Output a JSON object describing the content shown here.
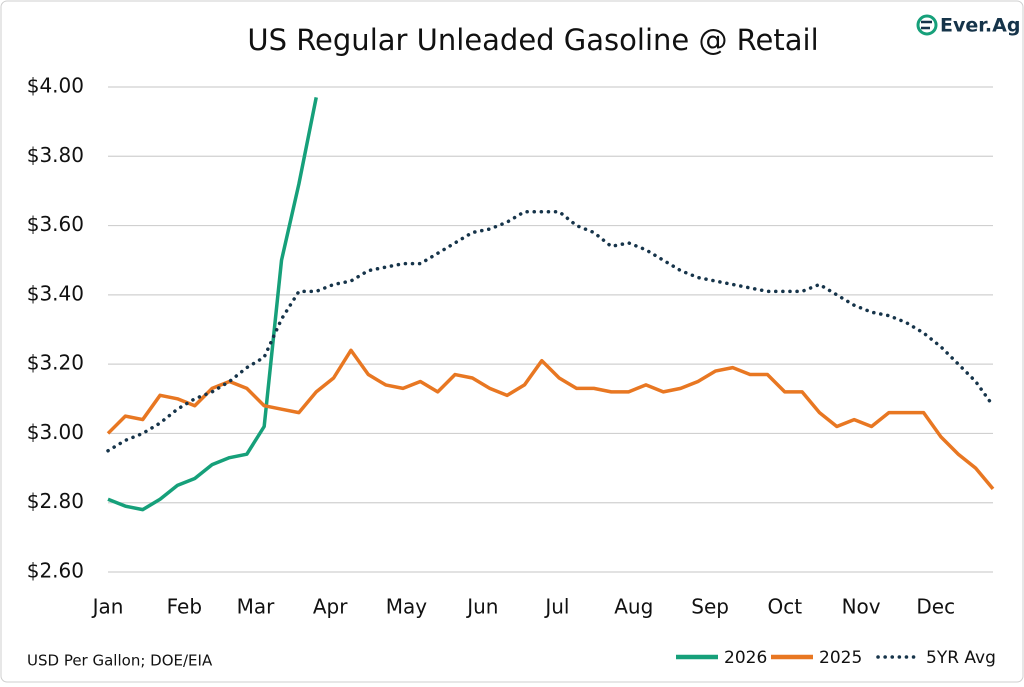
{
  "chart_data": {
    "type": "line",
    "title": "US Regular Unleaded Gasoline @ Retail",
    "brand": "Ever.Ag",
    "note": "USD Per Gallon; DOE/EIA",
    "x": [
      1,
      2,
      3,
      4,
      5,
      6,
      7,
      8,
      9,
      10,
      11,
      12,
      13,
      14,
      15,
      16,
      17,
      18,
      19,
      20,
      21,
      22,
      23,
      24,
      25,
      26,
      27,
      28,
      29,
      30,
      31,
      32,
      33,
      34,
      35,
      36,
      37,
      38,
      39,
      40,
      41,
      42,
      43,
      44,
      45,
      46,
      47,
      48,
      49,
      50,
      51,
      52
    ],
    "xlim": [
      1,
      52
    ],
    "xticks": [
      {
        "value": 1,
        "label": "Jan"
      },
      {
        "value": 5.4,
        "label": "Feb"
      },
      {
        "value": 9.5,
        "label": "Mar"
      },
      {
        "value": 13.8,
        "label": "Apr"
      },
      {
        "value": 18.2,
        "label": "May"
      },
      {
        "value": 22.6,
        "label": "Jun"
      },
      {
        "value": 26.9,
        "label": "Jul"
      },
      {
        "value": 31.3,
        "label": "Aug"
      },
      {
        "value": 35.7,
        "label": "Sep"
      },
      {
        "value": 40.0,
        "label": "Oct"
      },
      {
        "value": 44.4,
        "label": "Nov"
      },
      {
        "value": 48.7,
        "label": "Dec"
      }
    ],
    "ylim": [
      2.6,
      4.0
    ],
    "yticks": [
      {
        "value": 2.6,
        "label": "$2.60"
      },
      {
        "value": 2.8,
        "label": "$2.80"
      },
      {
        "value": 3.0,
        "label": "$3.00"
      },
      {
        "value": 3.2,
        "label": "$3.20"
      },
      {
        "value": 3.4,
        "label": "$3.40"
      },
      {
        "value": 3.6,
        "label": "$3.60"
      },
      {
        "value": 3.8,
        "label": "$3.80"
      },
      {
        "value": 4.0,
        "label": "$4.00"
      }
    ],
    "grid": true,
    "legend": "bottom-right",
    "series": [
      {
        "name": "2026",
        "color": "#16a07a",
        "style": "solid",
        "values": [
          2.81,
          2.79,
          2.78,
          2.81,
          2.85,
          2.87,
          2.91,
          2.93,
          2.94,
          3.02,
          3.5,
          3.72,
          3.97,
          null,
          null,
          null,
          null,
          null,
          null,
          null,
          null,
          null,
          null,
          null,
          null,
          null,
          null,
          null,
          null,
          null,
          null,
          null,
          null,
          null,
          null,
          null,
          null,
          null,
          null,
          null,
          null,
          null,
          null,
          null,
          null,
          null,
          null,
          null,
          null,
          null,
          null,
          null
        ]
      },
      {
        "name": "2025",
        "color": "#e87722",
        "style": "solid",
        "values": [
          3.0,
          3.05,
          3.04,
          3.11,
          3.1,
          3.08,
          3.13,
          3.15,
          3.13,
          3.08,
          3.07,
          3.06,
          3.12,
          3.16,
          3.24,
          3.17,
          3.14,
          3.13,
          3.15,
          3.12,
          3.17,
          3.16,
          3.13,
          3.11,
          3.14,
          3.21,
          3.16,
          3.13,
          3.13,
          3.12,
          3.12,
          3.14,
          3.12,
          3.13,
          3.15,
          3.18,
          3.19,
          3.17,
          3.17,
          3.12,
          3.12,
          3.06,
          3.02,
          3.04,
          3.02,
          3.06,
          3.06,
          3.06,
          2.99,
          2.94,
          2.9,
          2.84
        ]
      },
      {
        "name": "5YR Avg",
        "color": "#16344a",
        "style": "dotted",
        "values": [
          2.95,
          2.98,
          3.0,
          3.03,
          3.07,
          3.1,
          3.12,
          3.15,
          3.19,
          3.22,
          3.33,
          3.41,
          3.41,
          3.43,
          3.44,
          3.47,
          3.48,
          3.49,
          3.49,
          3.52,
          3.55,
          3.58,
          3.59,
          3.61,
          3.64,
          3.64,
          3.64,
          3.6,
          3.58,
          3.54,
          3.55,
          3.53,
          3.5,
          3.47,
          3.45,
          3.44,
          3.43,
          3.42,
          3.41,
          3.41,
          3.41,
          3.43,
          3.4,
          3.37,
          3.35,
          3.34,
          3.32,
          3.29,
          3.25,
          3.2,
          3.15,
          3.08
        ]
      }
    ]
  }
}
